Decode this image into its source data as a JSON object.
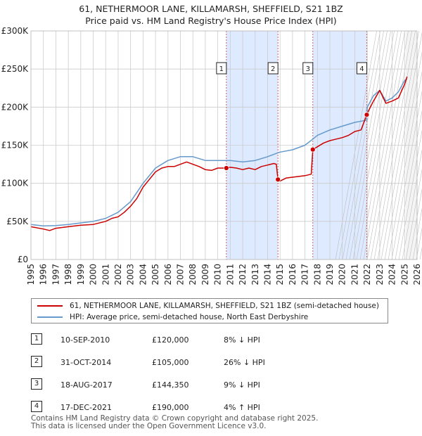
{
  "title": {
    "line1": "61, NETHERMOOR LANE, KILLAMARSH, SHEFFIELD, S21 1BZ",
    "line2": "Price paid vs. HM Land Registry's House Price Index (HPI)"
  },
  "colors": {
    "property": "#cc0000",
    "hpi": "#6699cc",
    "shade": "#ddeaff",
    "vline": "#cc6666",
    "grid": "#cccccc"
  },
  "legend": {
    "property_label": "61, NETHERMOOR LANE, KILLAMARSH, SHEFFIELD, S21 1BZ (semi-detached house)",
    "hpi_label": "HPI: Average price, semi-detached house, North East Derbyshire"
  },
  "sales": [
    {
      "num": "1",
      "date": "10-SEP-2010",
      "price": "£120,000",
      "hpi": "8% ↓ HPI"
    },
    {
      "num": "2",
      "date": "31-OCT-2014",
      "price": "£105,000",
      "hpi": "26% ↓ HPI"
    },
    {
      "num": "3",
      "date": "18-AUG-2017",
      "price": "£144,350",
      "hpi": "9% ↓ HPI"
    },
    {
      "num": "4",
      "date": "17-DEC-2021",
      "price": "£190,000",
      "hpi": "4% ↑ HPI"
    }
  ],
  "footer": {
    "line1": "Contains HM Land Registry data © Crown copyright and database right 2025.",
    "line2": "This data is licensed under the Open Government Licence v3.0."
  },
  "chart_data": {
    "type": "line",
    "title": "61, NETHERMOOR LANE, KILLAMARSH, SHEFFIELD, S21 1BZ — Price paid vs. HM Land Registry's House Price Index (HPI)",
    "xlabel": "",
    "ylabel": "",
    "xlim": [
      1995,
      2026
    ],
    "ylim": [
      0,
      300000
    ],
    "x_ticks": [
      1995,
      1996,
      1997,
      1998,
      1999,
      2000,
      2001,
      2002,
      2003,
      2004,
      2005,
      2006,
      2007,
      2008,
      2009,
      2010,
      2011,
      2012,
      2013,
      2014,
      2015,
      2016,
      2017,
      2018,
      2019,
      2020,
      2021,
      2022,
      2023,
      2024,
      2025,
      2026
    ],
    "y_ticks": [
      {
        "value": 0,
        "label": "£0"
      },
      {
        "value": 50000,
        "label": "£50K"
      },
      {
        "value": 100000,
        "label": "£100K"
      },
      {
        "value": 150000,
        "label": "£150K"
      },
      {
        "value": 200000,
        "label": "£200K"
      },
      {
        "value": 250000,
        "label": "£250K"
      },
      {
        "value": 300000,
        "label": "£300K"
      }
    ],
    "grid": true,
    "shaded_ranges": [
      [
        2010.69,
        2014.83
      ],
      [
        2017.63,
        2021.96
      ]
    ],
    "forecast_from": 2025.1,
    "markers": [
      {
        "label": "1",
        "x": 2010.69,
        "y": 120000
      },
      {
        "label": "2",
        "x": 2014.83,
        "y": 105000
      },
      {
        "label": "3",
        "x": 2017.63,
        "y": 144350
      },
      {
        "label": "4",
        "x": 2021.96,
        "y": 190000
      }
    ],
    "series": [
      {
        "name": "61, NETHERMOOR LANE, KILLAMARSH, SHEFFIELD, S21 1BZ (semi-detached house)",
        "color": "#cc0000",
        "points": [
          [
            1995,
            43000
          ],
          [
            1996,
            40000
          ],
          [
            1996.5,
            38000
          ],
          [
            1997,
            41000
          ],
          [
            1998,
            43000
          ],
          [
            1999,
            45000
          ],
          [
            2000,
            46000
          ],
          [
            2001,
            50000
          ],
          [
            2001.5,
            54000
          ],
          [
            2002,
            56000
          ],
          [
            2002.5,
            62000
          ],
          [
            2003,
            70000
          ],
          [
            2003.5,
            80000
          ],
          [
            2004,
            95000
          ],
          [
            2004.5,
            105000
          ],
          [
            2005,
            115000
          ],
          [
            2005.5,
            120000
          ],
          [
            2006,
            122000
          ],
          [
            2006.5,
            122000
          ],
          [
            2007,
            125000
          ],
          [
            2007.5,
            128000
          ],
          [
            2008,
            125000
          ],
          [
            2008.5,
            122000
          ],
          [
            2009,
            118000
          ],
          [
            2009.5,
            117000
          ],
          [
            2010,
            120000
          ],
          [
            2010.69,
            120000
          ],
          [
            2011,
            121000
          ],
          [
            2011.5,
            120000
          ],
          [
            2012,
            118000
          ],
          [
            2012.5,
            120000
          ],
          [
            2013,
            118000
          ],
          [
            2013.5,
            122000
          ],
          [
            2014,
            124000
          ],
          [
            2014.5,
            126000
          ],
          [
            2014.7,
            125000
          ],
          [
            2014.83,
            105000
          ],
          [
            2015,
            103000
          ],
          [
            2015.5,
            107000
          ],
          [
            2016,
            108000
          ],
          [
            2016.5,
            109000
          ],
          [
            2017,
            110000
          ],
          [
            2017.5,
            112000
          ],
          [
            2017.63,
            144350
          ],
          [
            2018,
            148000
          ],
          [
            2018.5,
            153000
          ],
          [
            2019,
            156000
          ],
          [
            2019.5,
            158000
          ],
          [
            2020,
            160000
          ],
          [
            2020.5,
            163000
          ],
          [
            2021,
            168000
          ],
          [
            2021.5,
            170000
          ],
          [
            2021.96,
            190000
          ],
          [
            2022,
            192000
          ],
          [
            2022.5,
            208000
          ],
          [
            2023,
            222000
          ],
          [
            2023.5,
            205000
          ],
          [
            2024,
            208000
          ],
          [
            2024.5,
            212000
          ],
          [
            2025,
            230000
          ],
          [
            2025.2,
            240000
          ]
        ]
      },
      {
        "name": "HPI: Average price, semi-detached house, North East Derbyshire",
        "color": "#6699cc",
        "points": [
          [
            1995,
            46000
          ],
          [
            1996,
            44000
          ],
          [
            1997,
            44500
          ],
          [
            1998,
            46000
          ],
          [
            1999,
            48000
          ],
          [
            2000,
            50000
          ],
          [
            2001,
            54000
          ],
          [
            2002,
            62000
          ],
          [
            2003,
            76000
          ],
          [
            2004,
            100000
          ],
          [
            2005,
            120000
          ],
          [
            2006,
            130000
          ],
          [
            2007,
            135000
          ],
          [
            2008,
            135000
          ],
          [
            2009,
            130000
          ],
          [
            2010,
            130000
          ],
          [
            2010.69,
            130000
          ],
          [
            2011,
            130000
          ],
          [
            2012,
            128000
          ],
          [
            2013,
            130000
          ],
          [
            2014,
            135000
          ],
          [
            2014.83,
            140000
          ],
          [
            2015,
            141000
          ],
          [
            2016,
            144000
          ],
          [
            2017,
            150000
          ],
          [
            2017.63,
            158000
          ],
          [
            2018,
            163000
          ],
          [
            2019,
            170000
          ],
          [
            2020,
            175000
          ],
          [
            2021,
            180000
          ],
          [
            2021.96,
            183000
          ],
          [
            2022,
            200000
          ],
          [
            2022.5,
            215000
          ],
          [
            2023,
            222000
          ],
          [
            2023.5,
            208000
          ],
          [
            2024,
            212000
          ],
          [
            2024.5,
            220000
          ],
          [
            2025,
            235000
          ],
          [
            2025.2,
            237000
          ]
        ]
      }
    ]
  }
}
